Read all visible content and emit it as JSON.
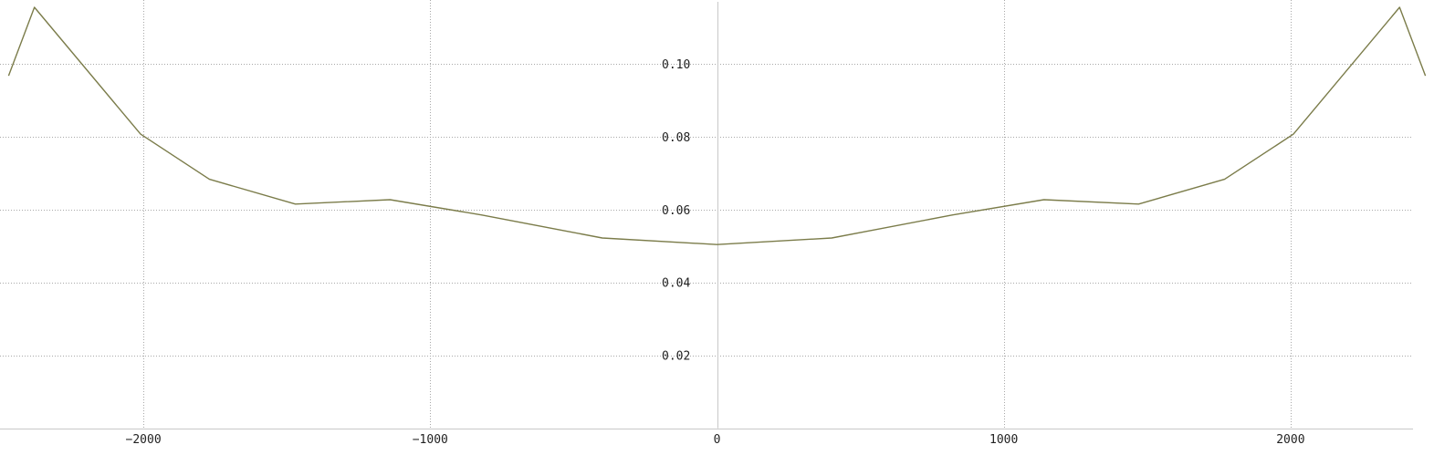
{
  "chart_data": {
    "type": "line",
    "title": "",
    "xlabel": "",
    "ylabel": "",
    "xlim": [
      -2500,
      2500
    ],
    "ylim": [
      -0.0016,
      0.1175
    ],
    "grid": true,
    "legend": "none",
    "colors": {
      "series": "#7b7c4a",
      "grid": "#a8a8a8",
      "axis": "#c8c8c8",
      "text": "#222222"
    },
    "x_ticks": [
      {
        "value": -2000,
        "label": "−2000"
      },
      {
        "value": -1000,
        "label": "−1000"
      },
      {
        "value": 0,
        "label": "0"
      },
      {
        "value": 1000,
        "label": "1000"
      },
      {
        "value": 2000,
        "label": "2000"
      }
    ],
    "y_ticks": [
      {
        "value": 0.02,
        "label": "0.02"
      },
      {
        "value": 0.04,
        "label": "0.04"
      },
      {
        "value": 0.06,
        "label": "0.06"
      },
      {
        "value": 0.08,
        "label": "0.08"
      },
      {
        "value": 0.1,
        "label": "0.10"
      }
    ],
    "series": [
      {
        "x": [
          -2470,
          -2380,
          -2010,
          -1770,
          -1470,
          -1140,
          -820,
          -400,
          0,
          400,
          820,
          1140,
          1470,
          1770,
          2010,
          2380,
          2470
        ],
        "y": [
          0.0967,
          0.1155,
          0.0807,
          0.0683,
          0.0615,
          0.0627,
          0.0585,
          0.0522,
          0.0504,
          0.0522,
          0.0585,
          0.0627,
          0.0615,
          0.0683,
          0.0807,
          0.1155,
          0.0967
        ]
      }
    ]
  }
}
